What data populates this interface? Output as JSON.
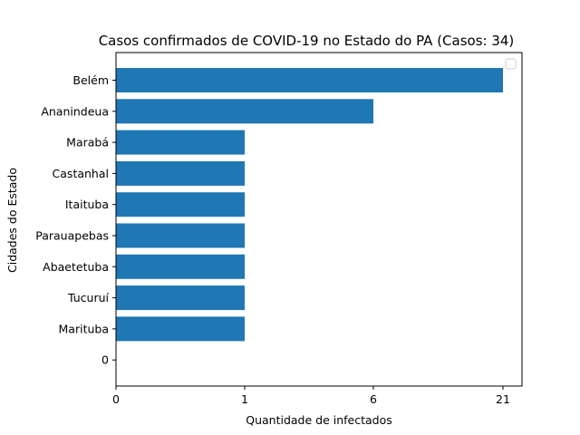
{
  "chart_data": {
    "type": "bar",
    "orientation": "horizontal",
    "title": "Casos confirmados de COVID-19 no Estado do PA (Casos: 34)",
    "xlabel": "Quantidade de infectados",
    "ylabel": "Cidades do Estado",
    "categories": [
      "Belém",
      "Ananindeua",
      "Marabá",
      "Castanhal",
      "Itaituba",
      "Parauapebas",
      "Abaetetuba",
      "Tucuruí",
      "Marituba",
      "0"
    ],
    "values": [
      21,
      6,
      1,
      1,
      1,
      1,
      1,
      1,
      1,
      0
    ],
    "x_ticks": [
      "0",
      "1",
      "6",
      "21"
    ],
    "bar_color": "#1f77b4",
    "legend": "top-right",
    "legend_entries": [],
    "grid": false
  }
}
